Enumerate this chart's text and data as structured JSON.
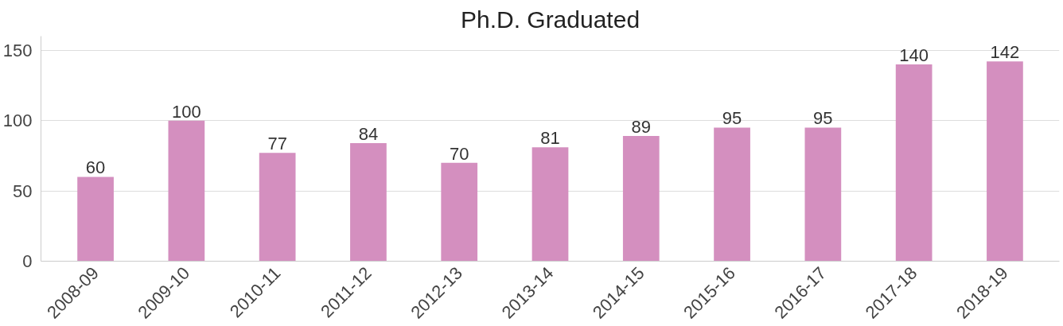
{
  "chart_data": {
    "type": "bar",
    "title": "Ph.D. Graduated",
    "categories": [
      "2008-09",
      "2009-10",
      "2010-11",
      "2011-12",
      "2012-13",
      "2013-14",
      "2014-15",
      "2015-16",
      "2016-17",
      "2017-18",
      "2018-19"
    ],
    "values": [
      60,
      100,
      77,
      84,
      70,
      81,
      89,
      95,
      95,
      140,
      142
    ],
    "color": "#d48fbf",
    "ylim": [
      0,
      160
    ],
    "yticks": [
      0,
      50,
      100,
      150
    ],
    "grid": "y",
    "data_labels": true
  }
}
